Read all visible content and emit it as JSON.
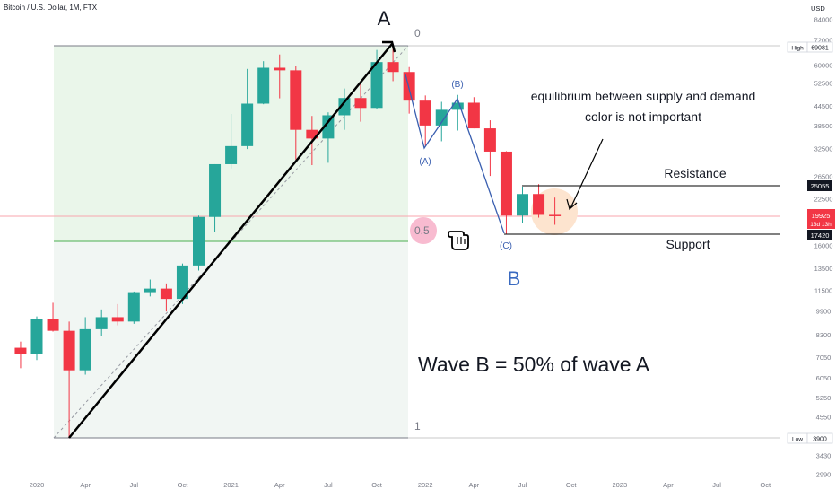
{
  "header": {
    "title": "Bitcoin / U.S. Dollar, 1M, FTX",
    "currency": "USD"
  },
  "annotations": {
    "wave_a": "A",
    "wave_b": "B",
    "wave_b_sub": "(B)",
    "wave_a_sub": "(A)",
    "wave_c_sub": "(C)",
    "fib_top": "0",
    "fib_mid": "0.5",
    "fib_bottom": "1",
    "note_line1": "equilibrium between supply and demand",
    "note_line2": "color is not important",
    "resistance": "Resistance",
    "support": "Support",
    "wave_text": "Wave B = 50% of wave A"
  },
  "colors": {
    "up": "#26a69a",
    "down": "#f23645",
    "fib_fill": "#e8f5e9",
    "wave_line": "#2962ff",
    "text": "#131722",
    "axis_text": "#787b86",
    "price_line": "#f23645",
    "highlight_pink": "#f8bbd0",
    "highlight_peach": "#fde0c8"
  },
  "chart_data": {
    "type": "candlestick",
    "title": "Bitcoin / U.S. Dollar, 1M, FTX",
    "ylabel": "USD",
    "yscale": "log",
    "ylim": [
      2990,
      84000
    ],
    "y_ticks": [
      84000,
      72000,
      69081,
      60000,
      52500,
      44500,
      38500,
      32500,
      26500,
      25055,
      22500,
      19925,
      17420,
      16000,
      13500,
      11500,
      9900,
      8300,
      7050,
      6050,
      5250,
      4550,
      3900,
      3430,
      2990
    ],
    "x_ticks": [
      "2020",
      "Apr",
      "Jul",
      "Oct",
      "2021",
      "Apr",
      "Jul",
      "Oct",
      "2022",
      "Apr",
      "Jul",
      "Oct",
      "2023",
      "Apr",
      "Jul",
      "Oct"
    ],
    "high_label": "High",
    "high_value": "69081",
    "low_label": "Low",
    "low_value": "3900",
    "resistance_value": "25055",
    "support_value": "17420",
    "last_price": "19925",
    "last_countdown": "13d 13h",
    "candles": [
      {
        "date": "2019-12",
        "o": 7550,
        "h": 7900,
        "l": 6500,
        "c": 7200
      },
      {
        "date": "2020-01",
        "o": 7200,
        "h": 9500,
        "l": 6900,
        "c": 9350
      },
      {
        "date": "2020-02",
        "o": 9350,
        "h": 10500,
        "l": 8500,
        "c": 8550
      },
      {
        "date": "2020-03",
        "o": 8550,
        "h": 9150,
        "l": 3900,
        "c": 6400
      },
      {
        "date": "2020-04",
        "o": 6400,
        "h": 9450,
        "l": 6200,
        "c": 8650
      },
      {
        "date": "2020-05",
        "o": 8650,
        "h": 10000,
        "l": 8250,
        "c": 9450
      },
      {
        "date": "2020-06",
        "o": 9450,
        "h": 10400,
        "l": 8900,
        "c": 9150
      },
      {
        "date": "2020-07",
        "o": 9150,
        "h": 11400,
        "l": 9000,
        "c": 11350
      },
      {
        "date": "2020-08",
        "o": 11350,
        "h": 12450,
        "l": 11000,
        "c": 11650
      },
      {
        "date": "2020-09",
        "o": 11650,
        "h": 12100,
        "l": 9850,
        "c": 10800
      },
      {
        "date": "2020-10",
        "o": 10800,
        "h": 14000,
        "l": 10400,
        "c": 13800
      },
      {
        "date": "2020-11",
        "o": 13800,
        "h": 19900,
        "l": 13300,
        "c": 19700
      },
      {
        "date": "2020-12",
        "o": 19700,
        "h": 29000,
        "l": 17600,
        "c": 29000
      },
      {
        "date": "2021-01",
        "o": 29000,
        "h": 41900,
        "l": 28100,
        "c": 33100
      },
      {
        "date": "2021-02",
        "o": 33100,
        "h": 58300,
        "l": 32400,
        "c": 45200
      },
      {
        "date": "2021-03",
        "o": 45200,
        "h": 61700,
        "l": 45000,
        "c": 58800
      },
      {
        "date": "2021-04",
        "o": 58800,
        "h": 64800,
        "l": 47000,
        "c": 57700
      },
      {
        "date": "2021-05",
        "o": 57700,
        "h": 59500,
        "l": 30000,
        "c": 37300
      },
      {
        "date": "2021-06",
        "o": 37300,
        "h": 41300,
        "l": 28800,
        "c": 35000
      },
      {
        "date": "2021-07",
        "o": 35000,
        "h": 42400,
        "l": 29300,
        "c": 41500
      },
      {
        "date": "2021-08",
        "o": 41500,
        "h": 50500,
        "l": 37300,
        "c": 47100
      },
      {
        "date": "2021-09",
        "o": 47100,
        "h": 52900,
        "l": 39600,
        "c": 43800
      },
      {
        "date": "2021-10",
        "o": 43800,
        "h": 67000,
        "l": 43300,
        "c": 61300
      },
      {
        "date": "2021-11",
        "o": 61300,
        "h": 69081,
        "l": 53300,
        "c": 57000
      },
      {
        "date": "2021-12",
        "o": 57000,
        "h": 59100,
        "l": 42000,
        "c": 46200
      },
      {
        "date": "2022-01",
        "o": 46200,
        "h": 48000,
        "l": 33000,
        "c": 38500
      },
      {
        "date": "2022-02",
        "o": 38500,
        "h": 45800,
        "l": 34300,
        "c": 43200
      },
      {
        "date": "2022-03",
        "o": 43200,
        "h": 48200,
        "l": 37100,
        "c": 45500
      },
      {
        "date": "2022-04",
        "o": 45500,
        "h": 47400,
        "l": 37700,
        "c": 37700
      },
      {
        "date": "2022-05",
        "o": 37700,
        "h": 40000,
        "l": 26600,
        "c": 31800
      },
      {
        "date": "2022-06",
        "o": 31800,
        "h": 31900,
        "l": 17420,
        "c": 19900
      },
      {
        "date": "2022-07",
        "o": 19900,
        "h": 24600,
        "l": 18800,
        "c": 23300
      },
      {
        "date": "2022-08",
        "o": 23300,
        "h": 25055,
        "l": 19600,
        "c": 20000
      },
      {
        "date": "2022-09",
        "o": 20000,
        "h": 22700,
        "l": 18600,
        "c": 19925
      }
    ]
  }
}
